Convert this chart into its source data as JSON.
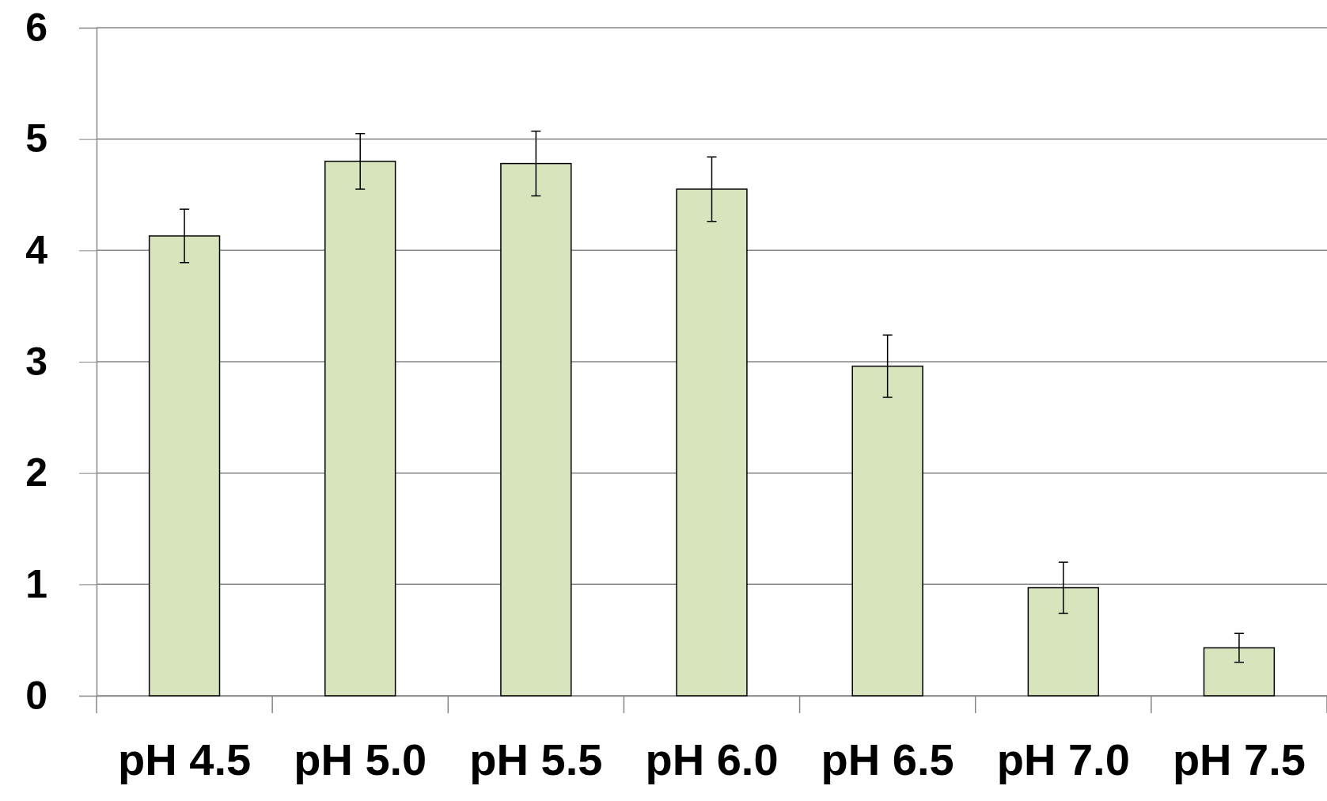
{
  "chart_data": {
    "type": "bar",
    "categories": [
      "pH 4.5",
      "pH 5.0",
      "pH 5.5",
      "pH 6.0",
      "pH 6.5",
      "pH 7.0",
      "pH 7.5"
    ],
    "values": [
      4.13,
      4.8,
      4.78,
      4.55,
      2.96,
      0.97,
      0.43
    ],
    "errors": [
      0.24,
      0.25,
      0.29,
      0.29,
      0.28,
      0.23,
      0.13
    ],
    "color": "#d8e4bc",
    "ylim": [
      0,
      6
    ],
    "yticks": [
      0,
      1,
      2,
      3,
      4,
      5,
      6
    ],
    "grid": "y"
  }
}
